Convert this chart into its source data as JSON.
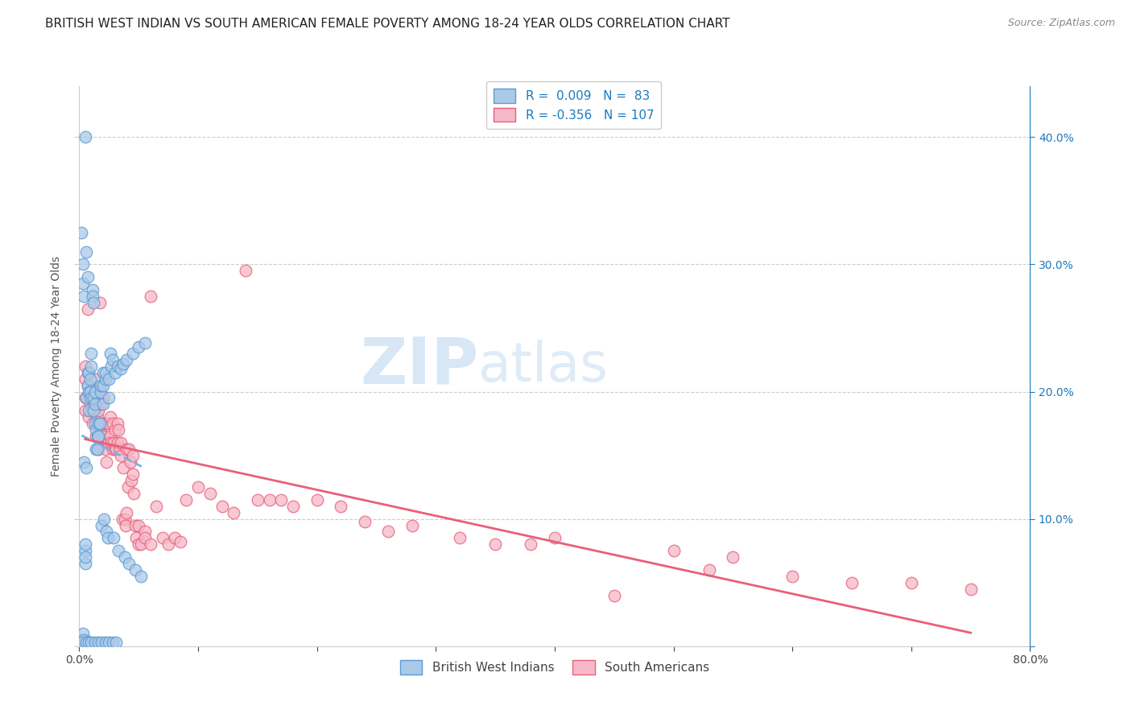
{
  "title": "BRITISH WEST INDIAN VS SOUTH AMERICAN FEMALE POVERTY AMONG 18-24 YEAR OLDS CORRELATION CHART",
  "source": "Source: ZipAtlas.com",
  "ylabel": "Female Poverty Among 18-24 Year Olds",
  "watermark_part1": "ZIP",
  "watermark_part2": "atlas",
  "blue_R": "0.009",
  "blue_N": "83",
  "pink_R": "-0.356",
  "pink_N": "107",
  "blue_fill_color": "#aac9e8",
  "pink_fill_color": "#f5b8c8",
  "blue_edge_color": "#5b9bd5",
  "pink_edge_color": "#e8607a",
  "blue_line_color": "#7ab0e0",
  "pink_line_color": "#e8607a",
  "legend_R_color": "#1a7abf",
  "xlim": [
    0.0,
    0.8
  ],
  "ylim": [
    0.0,
    0.44
  ],
  "blue_x": [
    0.002,
    0.003,
    0.003,
    0.004,
    0.004,
    0.005,
    0.005,
    0.005,
    0.005,
    0.005,
    0.006,
    0.006,
    0.006,
    0.007,
    0.007,
    0.007,
    0.008,
    0.008,
    0.008,
    0.009,
    0.009,
    0.01,
    0.01,
    0.01,
    0.011,
    0.011,
    0.012,
    0.012,
    0.012,
    0.013,
    0.013,
    0.013,
    0.014,
    0.014,
    0.015,
    0.015,
    0.016,
    0.016,
    0.017,
    0.018,
    0.018,
    0.019,
    0.02,
    0.02,
    0.02,
    0.021,
    0.022,
    0.022,
    0.023,
    0.024,
    0.025,
    0.025,
    0.026,
    0.027,
    0.028,
    0.029,
    0.03,
    0.032,
    0.033,
    0.035,
    0.037,
    0.038,
    0.04,
    0.042,
    0.045,
    0.047,
    0.05,
    0.052,
    0.055,
    0.005,
    0.003,
    0.003,
    0.002,
    0.006,
    0.008,
    0.01,
    0.013,
    0.016,
    0.019,
    0.022,
    0.025,
    0.028,
    0.031
  ],
  "blue_y": [
    0.325,
    0.3,
    0.285,
    0.275,
    0.145,
    0.075,
    0.065,
    0.08,
    0.07,
    0.005,
    0.31,
    0.195,
    0.14,
    0.205,
    0.215,
    0.29,
    0.2,
    0.185,
    0.215,
    0.2,
    0.21,
    0.22,
    0.23,
    0.195,
    0.28,
    0.275,
    0.185,
    0.195,
    0.27,
    0.175,
    0.19,
    0.2,
    0.155,
    0.17,
    0.155,
    0.165,
    0.165,
    0.175,
    0.175,
    0.2,
    0.205,
    0.095,
    0.215,
    0.19,
    0.205,
    0.1,
    0.21,
    0.215,
    0.09,
    0.085,
    0.195,
    0.21,
    0.23,
    0.22,
    0.225,
    0.085,
    0.215,
    0.22,
    0.075,
    0.218,
    0.222,
    0.07,
    0.225,
    0.065,
    0.23,
    0.06,
    0.235,
    0.055,
    0.238,
    0.4,
    0.01,
    0.005,
    0.003,
    0.003,
    0.003,
    0.003,
    0.003,
    0.003,
    0.003,
    0.003,
    0.003,
    0.003,
    0.003
  ],
  "pink_x": [
    0.005,
    0.005,
    0.005,
    0.005,
    0.007,
    0.007,
    0.008,
    0.008,
    0.009,
    0.01,
    0.01,
    0.011,
    0.011,
    0.012,
    0.012,
    0.013,
    0.013,
    0.014,
    0.014,
    0.015,
    0.015,
    0.015,
    0.016,
    0.016,
    0.017,
    0.018,
    0.018,
    0.018,
    0.019,
    0.02,
    0.02,
    0.021,
    0.022,
    0.022,
    0.023,
    0.024,
    0.025,
    0.025,
    0.026,
    0.026,
    0.027,
    0.028,
    0.028,
    0.029,
    0.03,
    0.03,
    0.031,
    0.032,
    0.032,
    0.033,
    0.034,
    0.035,
    0.035,
    0.036,
    0.037,
    0.038,
    0.039,
    0.04,
    0.04,
    0.041,
    0.042,
    0.043,
    0.044,
    0.045,
    0.045,
    0.046,
    0.047,
    0.048,
    0.05,
    0.05,
    0.052,
    0.055,
    0.055,
    0.06,
    0.06,
    0.065,
    0.07,
    0.075,
    0.08,
    0.085,
    0.09,
    0.1,
    0.11,
    0.12,
    0.13,
    0.14,
    0.15,
    0.16,
    0.17,
    0.18,
    0.2,
    0.22,
    0.24,
    0.26,
    0.28,
    0.32,
    0.35,
    0.38,
    0.4,
    0.45,
    0.5,
    0.53,
    0.55,
    0.6,
    0.65,
    0.7,
    0.75
  ],
  "pink_y": [
    0.22,
    0.21,
    0.195,
    0.185,
    0.265,
    0.205,
    0.195,
    0.18,
    0.19,
    0.195,
    0.185,
    0.195,
    0.175,
    0.185,
    0.195,
    0.195,
    0.21,
    0.165,
    0.2,
    0.195,
    0.18,
    0.195,
    0.185,
    0.155,
    0.27,
    0.175,
    0.19,
    0.17,
    0.165,
    0.175,
    0.195,
    0.165,
    0.155,
    0.175,
    0.145,
    0.16,
    0.175,
    0.16,
    0.18,
    0.165,
    0.16,
    0.175,
    0.155,
    0.16,
    0.17,
    0.155,
    0.155,
    0.16,
    0.175,
    0.17,
    0.155,
    0.16,
    0.15,
    0.1,
    0.14,
    0.1,
    0.095,
    0.105,
    0.155,
    0.125,
    0.155,
    0.145,
    0.13,
    0.15,
    0.135,
    0.12,
    0.095,
    0.085,
    0.095,
    0.08,
    0.08,
    0.09,
    0.085,
    0.08,
    0.275,
    0.11,
    0.085,
    0.08,
    0.085,
    0.082,
    0.115,
    0.125,
    0.12,
    0.11,
    0.105,
    0.295,
    0.115,
    0.115,
    0.115,
    0.11,
    0.115,
    0.11,
    0.098,
    0.09,
    0.095,
    0.085,
    0.08,
    0.08,
    0.085,
    0.04,
    0.075,
    0.06,
    0.07,
    0.055,
    0.05,
    0.05,
    0.045
  ],
  "grid_color": "#cccccc",
  "bg_color": "#ffffff",
  "title_fontsize": 11,
  "label_fontsize": 10,
  "tick_fontsize": 10,
  "legend_fontsize": 11
}
